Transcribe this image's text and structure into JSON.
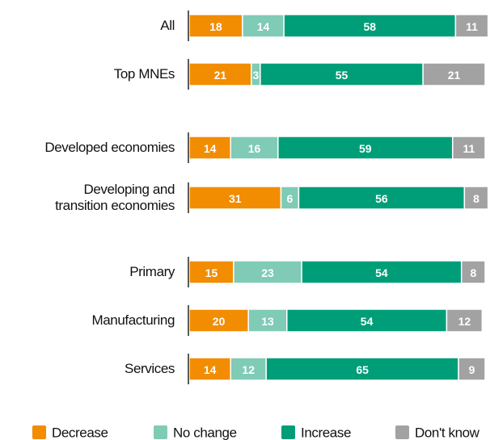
{
  "chart_data": {
    "type": "stacked-bar-horizontal",
    "categories": [
      "All",
      "Top MNEs",
      "Developed economies",
      "Developing and\ntransition economies",
      "Primary",
      "Manufacturing",
      "Services"
    ],
    "series": [
      {
        "name": "Decrease",
        "color": "#f28c00",
        "values": [
          18,
          21,
          14,
          31,
          15,
          20,
          14
        ]
      },
      {
        "name": "No change",
        "color": "#7fcbb6",
        "values": [
          14,
          3,
          16,
          6,
          23,
          13,
          12
        ]
      },
      {
        "name": "Increase",
        "color": "#009e78",
        "values": [
          58,
          55,
          59,
          56,
          54,
          54,
          65
        ]
      },
      {
        "name": "Don't know",
        "color": "#a2a2a2",
        "values": [
          11,
          21,
          11,
          8,
          8,
          12,
          9
        ]
      }
    ],
    "xlim": [
      0,
      100
    ]
  }
}
